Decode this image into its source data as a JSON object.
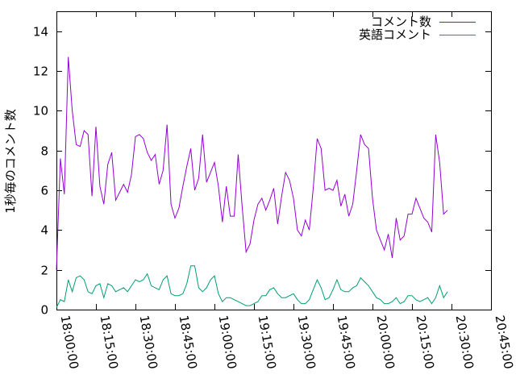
{
  "chart_data": {
    "type": "line",
    "title": "",
    "xlabel": "",
    "ylabel": "1秒毎のコメント数",
    "ylim": [
      0,
      15
    ],
    "xlim": [
      "18:00:00",
      "20:45:00"
    ],
    "yticks": [
      "0",
      "2",
      "4",
      "6",
      "8",
      "10",
      "12",
      "14"
    ],
    "xticks": [
      "18:00:00",
      "18:15:00",
      "18:30:00",
      "18:45:00",
      "19:00:00",
      "19:15:00",
      "19:30:00",
      "19:45:00",
      "20:00:00",
      "20:15:00",
      "20:30:00",
      "20:45:00"
    ],
    "grid": false,
    "legend_position": "top-right",
    "sample_interval_seconds": 90,
    "colors": {
      "series1": "#9400d3",
      "series2": "#009e73"
    },
    "series": [
      {
        "name": "コメント数",
        "values": [
          2.0,
          7.6,
          5.8,
          12.7,
          10.0,
          8.3,
          8.2,
          9.0,
          8.8,
          5.7,
          9.2,
          6.2,
          5.3,
          7.3,
          7.9,
          5.5,
          5.9,
          6.3,
          5.9,
          6.8,
          8.7,
          8.8,
          8.6,
          7.9,
          7.5,
          7.8,
          6.3,
          7.0,
          9.3,
          5.3,
          4.6,
          5.1,
          6.2,
          7.2,
          8.1,
          6.0,
          6.6,
          8.8,
          6.4,
          6.9,
          7.4,
          6.2,
          4.4,
          6.2,
          4.7,
          4.7,
          7.8,
          5.2,
          2.9,
          3.3,
          4.5,
          5.3,
          5.6,
          5.0,
          5.5,
          6.1,
          4.3,
          5.7,
          6.9,
          6.5,
          5.6,
          4.0,
          3.7,
          4.5,
          4.0,
          6.1,
          8.6,
          8.1,
          6.0,
          6.1,
          6.0,
          6.5,
          5.2,
          5.8,
          4.7,
          5.3,
          7.0,
          8.8,
          8.3,
          8.1,
          5.6,
          4.0,
          3.5,
          3.0,
          3.8,
          2.6,
          4.6,
          3.5,
          3.7,
          4.8,
          4.8,
          5.6,
          5.1,
          4.6,
          4.4,
          3.9,
          8.8,
          7.4,
          4.8,
          5.0
        ]
      },
      {
        "name": "英語コメント",
        "values": [
          0.1,
          0.5,
          0.4,
          1.5,
          0.9,
          1.6,
          1.7,
          1.5,
          0.9,
          0.8,
          1.2,
          1.3,
          0.6,
          1.3,
          1.2,
          0.9,
          1.0,
          1.1,
          0.9,
          1.2,
          1.5,
          1.4,
          1.5,
          1.8,
          1.2,
          1.1,
          1.0,
          1.5,
          1.7,
          0.8,
          0.7,
          0.7,
          0.8,
          1.3,
          2.2,
          2.2,
          1.1,
          0.9,
          1.1,
          1.5,
          1.7,
          0.8,
          0.4,
          0.6,
          0.6,
          0.5,
          0.4,
          0.3,
          0.2,
          0.2,
          0.3,
          0.4,
          0.7,
          0.7,
          1.0,
          1.1,
          0.8,
          0.6,
          0.6,
          0.7,
          0.8,
          0.5,
          0.3,
          0.3,
          0.5,
          1.0,
          1.5,
          1.1,
          0.5,
          0.6,
          1.0,
          1.5,
          1.0,
          0.9,
          0.9,
          1.1,
          1.2,
          1.6,
          1.4,
          1.2,
          0.9,
          0.6,
          0.5,
          0.3,
          0.3,
          0.4,
          0.6,
          0.3,
          0.4,
          0.7,
          0.7,
          0.5,
          0.4,
          0.5,
          0.6,
          0.3,
          0.6,
          1.2,
          0.6,
          0.9
        ]
      }
    ]
  }
}
